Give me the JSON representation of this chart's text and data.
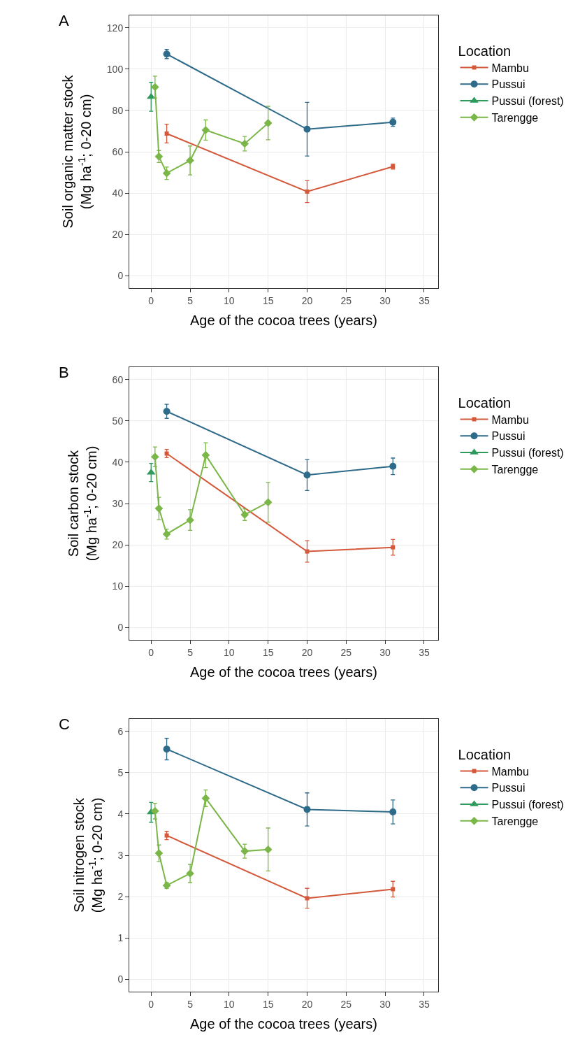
{
  "chart_data": [
    {
      "type": "line",
      "title": "A",
      "xlabel": "Age of the cocoa trees (years)",
      "ylabel": "Soil organic matter stock\n(Mg ha$^{-1}$; 0-20 cm)",
      "legend_title": "Location",
      "legend": "right",
      "grid": true,
      "line_style": "solid",
      "xlim": [
        -2.8,
        36.8
      ],
      "xticks": [
        0,
        5,
        10,
        15,
        20,
        25,
        30,
        35
      ],
      "ylim": [
        -6,
        126
      ],
      "yticks": [
        0,
        20,
        40,
        60,
        80,
        100,
        120
      ],
      "series": [
        {
          "name": "Mambu",
          "color": "#d4583a",
          "marker": "square",
          "x": [
            2,
            20,
            31
          ],
          "values": [
            68.8,
            40.7,
            52.8
          ],
          "errors": [
            4.5,
            5.3,
            1.2
          ]
        },
        {
          "name": "Pussui",
          "color": "#2e6b8a",
          "marker": "circle",
          "x": [
            2,
            20,
            31
          ],
          "values": [
            107.3,
            70.9,
            74.3
          ],
          "errors": [
            2.2,
            13,
            2
          ]
        },
        {
          "name": "Pussui (forest)",
          "color": "#2e9a5c",
          "marker": "triangle",
          "x": [
            0
          ],
          "values": [
            86.6
          ],
          "errors": [
            7
          ]
        },
        {
          "name": "Tarengge",
          "color": "#7ab648",
          "marker": "diamond",
          "x": [
            0.5,
            1,
            2,
            5,
            7,
            12,
            15
          ],
          "values": [
            91.3,
            57.7,
            49.6,
            55.8,
            70.5,
            63.9,
            73.9
          ],
          "errors": [
            5.3,
            2.9,
            3,
            7,
            4.9,
            3.5,
            8.1
          ]
        }
      ]
    },
    {
      "type": "line",
      "title": "B",
      "xlabel": "Age of the cocoa trees (years)",
      "ylabel": "Soil carbon stock\n(Mg ha$^{-1}$; 0-20 cm)",
      "legend_title": "Location",
      "legend": "right",
      "grid": true,
      "line_style": "solid",
      "xlim": [
        -2.8,
        36.8
      ],
      "xticks": [
        0,
        5,
        10,
        15,
        20,
        25,
        30,
        35
      ],
      "ylim": [
        -3,
        63
      ],
      "yticks": [
        0,
        10,
        20,
        30,
        40,
        50,
        60
      ],
      "series": [
        {
          "name": "Mambu",
          "color": "#d4583a",
          "marker": "square",
          "x": [
            2,
            20,
            31
          ],
          "values": [
            42.1,
            18.4,
            19.4
          ],
          "errors": [
            1,
            2.6,
            1.9
          ]
        },
        {
          "name": "Pussui",
          "color": "#2e6b8a",
          "marker": "circle",
          "x": [
            2,
            20,
            31
          ],
          "values": [
            52.3,
            36.9,
            39.0
          ],
          "errors": [
            1.7,
            3.75,
            2
          ]
        },
        {
          "name": "Pussui (forest)",
          "color": "#2e9a5c",
          "marker": "triangle",
          "x": [
            0
          ],
          "values": [
            37.5
          ],
          "errors": [
            2.2
          ]
        },
        {
          "name": "Tarengge",
          "color": "#7ab648",
          "marker": "diamond",
          "x": [
            0.5,
            1,
            2,
            5,
            7,
            12,
            15
          ],
          "values": [
            41.3,
            28.8,
            22.6,
            26.0,
            41.7,
            27.3,
            30.3
          ],
          "errors": [
            2.4,
            2.7,
            1.2,
            2.5,
            3,
            1.4,
            4.8
          ]
        }
      ]
    },
    {
      "type": "line",
      "title": "C",
      "xlabel": "Age of the cocoa trees (years)",
      "ylabel": "Soil nitrogen stock\n(Mg ha$^{-1}$; 0-20 cm)",
      "legend_title": "Location",
      "legend": "right",
      "grid": true,
      "line_style": "solid",
      "xlim": [
        -2.8,
        36.8
      ],
      "xticks": [
        0,
        5,
        10,
        15,
        20,
        25,
        30,
        35
      ],
      "ylim": [
        -0.3,
        6.3
      ],
      "yticks": [
        0,
        1,
        2,
        3,
        4,
        5,
        6
      ],
      "series": [
        {
          "name": "Mambu",
          "color": "#d4583a",
          "marker": "square",
          "x": [
            2,
            20,
            31
          ],
          "values": [
            3.48,
            1.96,
            2.18
          ],
          "errors": [
            0.1,
            0.24,
            0.19
          ]
        },
        {
          "name": "Pussui",
          "color": "#2e6b8a",
          "marker": "circle",
          "x": [
            2,
            20,
            31
          ],
          "values": [
            5.57,
            4.11,
            4.05
          ],
          "errors": [
            0.26,
            0.4,
            0.29
          ]
        },
        {
          "name": "Pussui (forest)",
          "color": "#2e9a5c",
          "marker": "triangle",
          "x": [
            0
          ],
          "values": [
            4.04
          ],
          "errors": [
            0.24
          ]
        },
        {
          "name": "Tarengge",
          "color": "#7ab648",
          "marker": "diamond",
          "x": [
            0.5,
            1,
            2,
            5,
            7,
            12,
            15
          ],
          "values": [
            4.07,
            3.05,
            2.27,
            2.56,
            4.38,
            3.1,
            3.14
          ],
          "errors": [
            0.19,
            0.2,
            0.07,
            0.22,
            0.2,
            0.17,
            0.52
          ]
        }
      ]
    }
  ]
}
